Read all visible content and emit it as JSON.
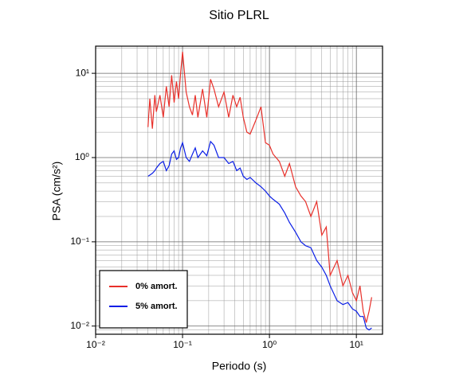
{
  "chart_data": {
    "type": "line",
    "title": "Sitio PLRL",
    "x_label": "Periodo (s)",
    "y_label": "PSA (cm/s²)",
    "x_log": true,
    "y_log": true,
    "grid": true,
    "minor_grid": true,
    "legend": "lower left",
    "xlim": [
      0.01,
      20
    ],
    "ylim": [
      0.008,
      21
    ],
    "xticks": [
      {
        "value": 0.01,
        "label": "10⁻²"
      },
      {
        "value": 0.1,
        "label": "10⁻¹"
      },
      {
        "value": 1,
        "label": "10⁰"
      },
      {
        "value": 10,
        "label": "10¹"
      }
    ],
    "yticks": [
      {
        "value": 0.01,
        "label": "10⁻²"
      },
      {
        "value": 0.1,
        "label": "10⁻¹"
      },
      {
        "value": 1,
        "label": "10⁰"
      },
      {
        "value": 10,
        "label": "10¹"
      }
    ],
    "x": [
      0.04,
      0.042,
      0.045,
      0.048,
      0.05,
      0.055,
      0.06,
      0.065,
      0.07,
      0.075,
      0.08,
      0.085,
      0.09,
      0.095,
      0.1,
      0.11,
      0.12,
      0.13,
      0.14,
      0.15,
      0.17,
      0.19,
      0.21,
      0.23,
      0.26,
      0.3,
      0.34,
      0.38,
      0.42,
      0.46,
      0.5,
      0.55,
      0.6,
      0.7,
      0.8,
      0.9,
      1.0,
      1.1,
      1.3,
      1.5,
      1.7,
      2.0,
      2.3,
      2.6,
      3.0,
      3.5,
      4.0,
      4.5,
      5.0,
      6.0,
      7.0,
      8.0,
      9.0,
      10,
      11,
      12,
      13,
      14,
      15
    ],
    "series": [
      {
        "name": "0% amort.",
        "color": "#e8302a",
        "values": [
          2.3,
          5,
          2.2,
          5.5,
          3.5,
          5.5,
          3,
          7,
          4,
          9.5,
          4.5,
          8,
          5,
          10,
          18,
          6,
          4,
          3.2,
          5.5,
          3,
          6.5,
          3,
          8.5,
          6.5,
          4,
          6,
          3,
          5.5,
          4,
          5.2,
          3,
          2,
          1.9,
          2.8,
          4,
          1.5,
          1.4,
          1.1,
          0.9,
          0.6,
          0.85,
          0.45,
          0.35,
          0.3,
          0.2,
          0.3,
          0.12,
          0.15,
          0.04,
          0.06,
          0.03,
          0.04,
          0.025,
          0.02,
          0.03,
          0.015,
          0.011,
          0.015,
          0.022
        ]
      },
      {
        "name": "5% amort.",
        "color": "#0a1ee6",
        "values": [
          0.6,
          0.62,
          0.65,
          0.7,
          0.75,
          0.85,
          0.9,
          0.7,
          0.8,
          1.1,
          1.2,
          0.95,
          1.0,
          1.3,
          1.5,
          1.0,
          0.9,
          1.1,
          1.3,
          1.0,
          1.2,
          1.05,
          1.55,
          1.4,
          1.0,
          1.0,
          0.85,
          0.9,
          0.7,
          0.75,
          0.6,
          0.55,
          0.58,
          0.5,
          0.45,
          0.4,
          0.35,
          0.32,
          0.28,
          0.22,
          0.17,
          0.13,
          0.1,
          0.09,
          0.085,
          0.06,
          0.05,
          0.04,
          0.03,
          0.02,
          0.018,
          0.019,
          0.016,
          0.015,
          0.013,
          0.013,
          0.0095,
          0.009,
          0.0095
        ]
      }
    ]
  }
}
